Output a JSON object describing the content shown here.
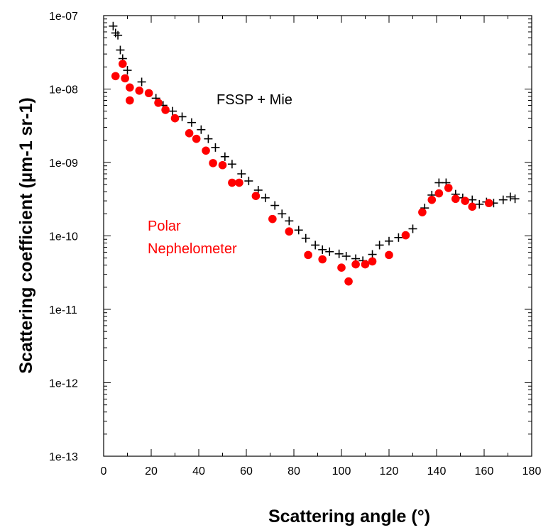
{
  "chart_data": {
    "type": "scatter",
    "xlabel": "Scattering angle (°)",
    "ylabel": "Scattering coefficient (µm-1  sr-1)",
    "xlim": [
      0,
      180
    ],
    "ylim": [
      1e-13,
      1e-07
    ],
    "y_scale": "log",
    "x_ticks": [
      "0",
      "20",
      "40",
      "60",
      "80",
      "100",
      "120",
      "140",
      "160",
      "180"
    ],
    "y_ticks": [
      "1e-13",
      "1e-12",
      "1e-11",
      "1e-10",
      "1e-09",
      "1e-08",
      "1e-07"
    ],
    "grid": false,
    "annotations": [
      {
        "text": "FSSP + Mie",
        "color": "#000000"
      },
      {
        "text": "Polar",
        "color": "#ff0000"
      },
      {
        "text": "Nephelometer",
        "color": "#ff0000"
      }
    ],
    "series": [
      {
        "marker": "plus",
        "color": "#000000",
        "points": [
          [
            4,
            7.2e-08
          ],
          [
            5,
            5.8e-08
          ],
          [
            6,
            5.4e-08
          ],
          [
            7,
            3.4e-08
          ],
          [
            8,
            2.6e-08
          ],
          [
            10,
            1.8e-08
          ],
          [
            16,
            1.25e-08
          ],
          [
            22,
            7.5e-09
          ],
          [
            25,
            6e-09
          ],
          [
            29,
            5e-09
          ],
          [
            33,
            4.2e-09
          ],
          [
            37,
            3.5e-09
          ],
          [
            41,
            2.8e-09
          ],
          [
            44,
            2.1e-09
          ],
          [
            47,
            1.6e-09
          ],
          [
            51,
            1.2e-09
          ],
          [
            54,
            9.5e-10
          ],
          [
            58,
            7e-10
          ],
          [
            61,
            5.6e-10
          ],
          [
            65,
            4.2e-10
          ],
          [
            68,
            3.3e-10
          ],
          [
            72,
            2.6e-10
          ],
          [
            75,
            2e-10
          ],
          [
            78,
            1.6e-10
          ],
          [
            82,
            1.2e-10
          ],
          [
            85,
            9.3e-11
          ],
          [
            89,
            7.5e-11
          ],
          [
            92,
            6.5e-11
          ],
          [
            95,
            6.1e-11
          ],
          [
            99,
            5.7e-11
          ],
          [
            102,
            5.3e-11
          ],
          [
            106,
            4.9e-11
          ],
          [
            109,
            4.6e-11
          ],
          [
            113,
            5.6e-11
          ],
          [
            116,
            7.5e-11
          ],
          [
            120,
            8.5e-11
          ],
          [
            124,
            9.5e-11
          ],
          [
            130,
            1.25e-10
          ],
          [
            135,
            2.4e-10
          ],
          [
            138,
            3.6e-10
          ],
          [
            141,
            5.3e-10
          ],
          [
            144,
            5.3e-10
          ],
          [
            148,
            3.7e-10
          ],
          [
            151,
            3.3e-10
          ],
          [
            155,
            3.1e-10
          ],
          [
            158,
            2.7e-10
          ],
          [
            161,
            2.9e-10
          ],
          [
            164,
            2.8e-10
          ],
          [
            168,
            3.1e-10
          ],
          [
            171,
            3.4e-10
          ],
          [
            173,
            3.2e-10
          ]
        ]
      },
      {
        "marker": "circle",
        "color": "#ff0000",
        "points": [
          [
            5,
            1.5e-08
          ],
          [
            8,
            2.2e-08
          ],
          [
            9,
            1.4e-08
          ],
          [
            11,
            1.05e-08
          ],
          [
            11,
            7e-09
          ],
          [
            15,
            9.5e-09
          ],
          [
            19,
            8.8e-09
          ],
          [
            23,
            6.5e-09
          ],
          [
            26,
            5.2e-09
          ],
          [
            30,
            4e-09
          ],
          [
            36,
            2.5e-09
          ],
          [
            39,
            2.1e-09
          ],
          [
            43,
            1.45e-09
          ],
          [
            46,
            9.8e-10
          ],
          [
            50,
            9.2e-10
          ],
          [
            54,
            5.3e-10
          ],
          [
            57,
            5.3e-10
          ],
          [
            64,
            3.5e-10
          ],
          [
            71,
            1.7e-10
          ],
          [
            78,
            1.15e-10
          ],
          [
            86,
            5.5e-11
          ],
          [
            92,
            4.8e-11
          ],
          [
            100,
            3.7e-11
          ],
          [
            103,
            2.4e-11
          ],
          [
            106,
            4.1e-11
          ],
          [
            110,
            4.1e-11
          ],
          [
            113,
            4.5e-11
          ],
          [
            120,
            5.5e-11
          ],
          [
            127,
            1.02e-10
          ],
          [
            134,
            2.1e-10
          ],
          [
            138,
            3.1e-10
          ],
          [
            141,
            3.8e-10
          ],
          [
            145,
            4.5e-10
          ],
          [
            148,
            3.2e-10
          ],
          [
            152,
            3e-10
          ],
          [
            155,
            2.5e-10
          ],
          [
            162,
            2.8e-10
          ]
        ]
      }
    ]
  }
}
